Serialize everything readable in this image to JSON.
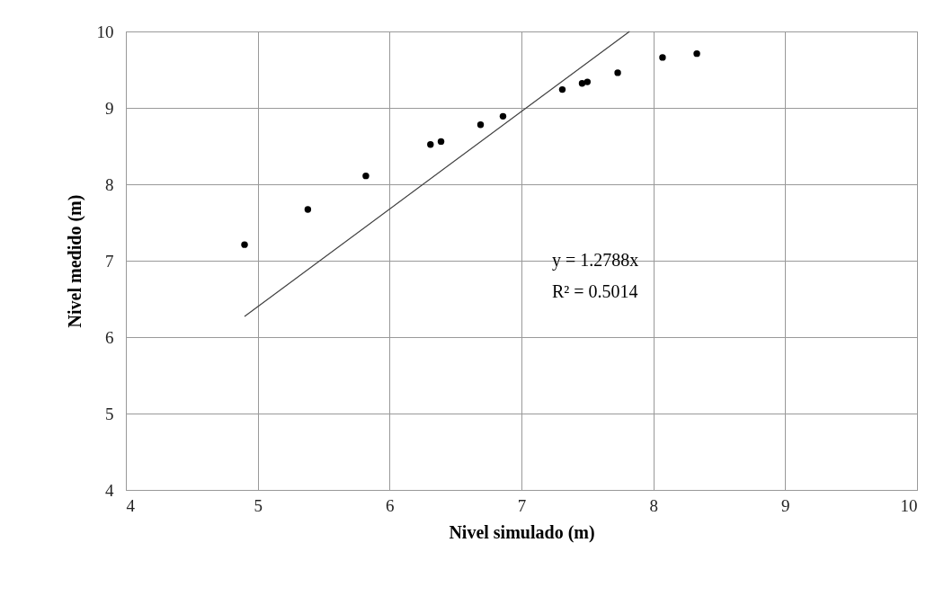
{
  "chart_data": {
    "type": "scatter",
    "xlabel": "Nivel simulado (m)",
    "ylabel": "Nivel medido (m)",
    "xlim": [
      4,
      10
    ],
    "xticks": [
      4,
      5,
      6,
      7,
      8,
      9,
      10
    ],
    "ylim": [
      4,
      10
    ],
    "yticks": [
      4,
      5,
      6,
      7,
      8,
      9,
      10
    ],
    "grid": true,
    "series": [
      {
        "marker": "circle",
        "color": "#000000",
        "x": [
          4.9,
          5.38,
          5.82,
          6.31,
          6.39,
          6.69,
          6.86,
          7.31,
          7.46,
          7.5,
          7.73,
          8.07,
          8.33
        ],
        "values": [
          7.21,
          7.67,
          8.11,
          8.52,
          8.56,
          8.78,
          8.89,
          9.24,
          9.32,
          9.34,
          9.46,
          9.66,
          9.71
        ]
      },
      {
        "type": "line",
        "color": "#404040",
        "x": [
          4.9,
          7.82
        ],
        "values": [
          6.27,
          10.0
        ]
      }
    ],
    "annotations": [
      "y = 1.2788x",
      "R² = 0.5014"
    ]
  }
}
